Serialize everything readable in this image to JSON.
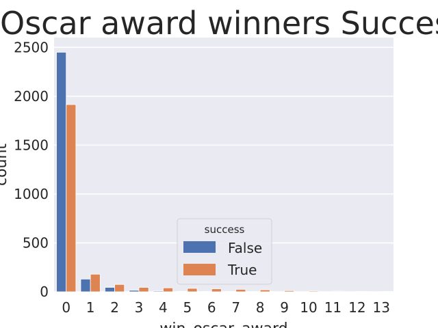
{
  "chart_data": {
    "type": "bar",
    "title": "Oscar award winners Success",
    "xlabel": "win_oscar_award",
    "ylabel": "count",
    "categories": [
      "0",
      "1",
      "2",
      "3",
      "4",
      "5",
      "6",
      "7",
      "8",
      "9",
      "10",
      "11",
      "12",
      "13"
    ],
    "series": [
      {
        "name": "False",
        "color": "#4c72b0",
        "values": [
          2450,
          130,
          45,
          15,
          8,
          5,
          4,
          3,
          2,
          1,
          1,
          1,
          0,
          0
        ]
      },
      {
        "name": "True",
        "color": "#dd8452",
        "values": [
          1915,
          180,
          75,
          45,
          40,
          35,
          30,
          25,
          20,
          12,
          8,
          6,
          4,
          3
        ]
      }
    ],
    "ylim": [
      0,
      2600
    ],
    "yticks": [
      "0",
      "500",
      "1000",
      "1500",
      "2000",
      "2500"
    ],
    "grid": true,
    "legend": {
      "title": "success",
      "placement": "lower-center"
    }
  }
}
